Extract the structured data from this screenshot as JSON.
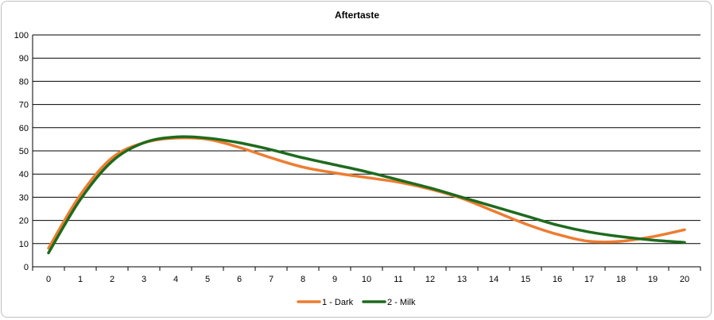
{
  "chart_data": {
    "type": "line",
    "title": "Aftertaste",
    "xlabel": "",
    "ylabel": "",
    "x": [
      0,
      1,
      2,
      3,
      4,
      5,
      6,
      7,
      8,
      9,
      10,
      11,
      12,
      13,
      14,
      15,
      16,
      17,
      18,
      19,
      20
    ],
    "ylim": [
      0,
      100
    ],
    "yticks": [
      0,
      10,
      20,
      30,
      40,
      50,
      60,
      70,
      80,
      90,
      100
    ],
    "grid": true,
    "legend_position": "bottom",
    "series": [
      {
        "name": "1 - Dark",
        "color": "#ED7D31",
        "values": [
          8,
          31,
          47,
          53.5,
          55.5,
          55,
          51.5,
          47,
          43,
          40.5,
          38.5,
          36.5,
          33.5,
          29.5,
          24,
          18.5,
          14,
          11,
          11,
          13,
          16
        ]
      },
      {
        "name": "2 - Milk",
        "color": "#1E6B1E",
        "values": [
          6,
          29,
          45.5,
          53.5,
          56,
          55.5,
          53.5,
          50.5,
          47,
          44,
          41,
          37.5,
          34,
          30,
          26,
          22,
          18,
          15,
          13,
          11.5,
          10.5
        ]
      }
    ]
  }
}
